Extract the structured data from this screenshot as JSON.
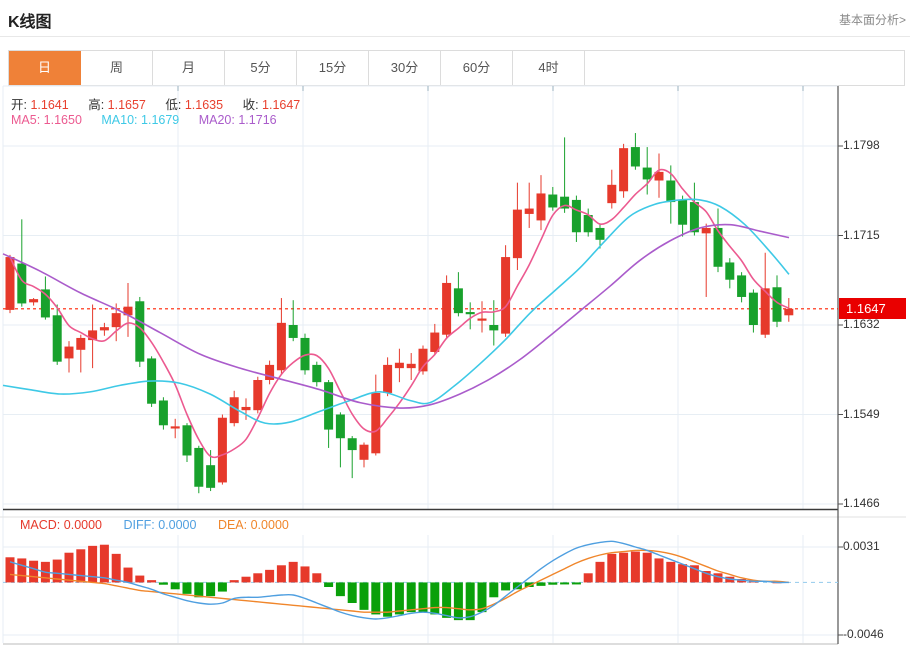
{
  "header": {
    "title": "K线图",
    "link": "基本面分析>"
  },
  "tabs": {
    "items": [
      "日",
      "周",
      "月",
      "5分",
      "15分",
      "30分",
      "60分",
      "4时"
    ],
    "active_index": 0
  },
  "info": {
    "ohlc": [
      {
        "label": "开:",
        "value": "1.1641"
      },
      {
        "label": "高:",
        "value": "1.1657"
      },
      {
        "label": "低:",
        "value": "1.1635"
      },
      {
        "label": "收:",
        "value": "1.1647"
      }
    ],
    "ma": [
      {
        "label": "MA5:",
        "value": "1.1650",
        "color": "#ec5a90"
      },
      {
        "label": "MA10:",
        "value": "1.1679",
        "color": "#3ec9e6"
      },
      {
        "label": "MA20:",
        "value": "1.1716",
        "color": "#aa5ccb"
      }
    ]
  },
  "chart_data": {
    "type": "candlestick",
    "title": "K线图",
    "last_price": 1.1647,
    "last_price_label": "1.1647",
    "y_axis": {
      "labels": [
        "1.1798",
        "1.1715",
        "1.1632",
        "1.1549",
        "1.1466"
      ],
      "values": [
        1.1798,
        1.1715,
        1.1632,
        1.1549,
        1.1466
      ],
      "ylim": [
        1.1461,
        1.1854
      ]
    },
    "candles_ohlc": [
      [
        1.1646,
        1.1697,
        1.1643,
        1.1695
      ],
      [
        1.1689,
        1.173,
        1.1649,
        1.1652
      ],
      [
        1.1653,
        1.1657,
        1.165,
        1.1656
      ],
      [
        1.1665,
        1.1677,
        1.1637,
        1.1639
      ],
      [
        1.1641,
        1.1651,
        1.1595,
        1.1598
      ],
      [
        1.1601,
        1.1617,
        1.1588,
        1.1612
      ],
      [
        1.1609,
        1.1623,
        1.1588,
        1.162
      ],
      [
        1.1618,
        1.1651,
        1.1592,
        1.1627
      ],
      [
        1.1627,
        1.1634,
        1.1622,
        1.163
      ],
      [
        1.163,
        1.1652,
        1.1617,
        1.1643
      ],
      [
        1.1641,
        1.1671,
        1.1621,
        1.1649
      ],
      [
        1.1654,
        1.1658,
        1.1593,
        1.1598
      ],
      [
        1.1601,
        1.1603,
        1.1556,
        1.1559
      ],
      [
        1.1562,
        1.1565,
        1.1535,
        1.1539
      ],
      [
        1.1536,
        1.1545,
        1.1527,
        1.1538
      ],
      [
        1.1539,
        1.1541,
        1.1505,
        1.1511
      ],
      [
        1.1518,
        1.152,
        1.1476,
        1.1482
      ],
      [
        1.1502,
        1.1516,
        1.1478,
        1.1481
      ],
      [
        1.1486,
        1.1549,
        1.1484,
        1.1546
      ],
      [
        1.1541,
        1.1571,
        1.1538,
        1.1565
      ],
      [
        1.1553,
        1.1564,
        1.1544,
        1.1556
      ],
      [
        1.1553,
        1.1584,
        1.155,
        1.1581
      ],
      [
        1.1581,
        1.1599,
        1.1577,
        1.1595
      ],
      [
        1.159,
        1.1657,
        1.1586,
        1.1634
      ],
      [
        1.1632,
        1.1655,
        1.1617,
        1.162
      ],
      [
        1.162,
        1.1624,
        1.1586,
        1.159
      ],
      [
        1.1595,
        1.1598,
        1.1575,
        1.1579
      ],
      [
        1.1579,
        1.1581,
        1.1518,
        1.1535
      ],
      [
        1.1549,
        1.1551,
        1.15,
        1.1527
      ],
      [
        1.1527,
        1.1529,
        1.149,
        1.1516
      ],
      [
        1.1507,
        1.1523,
        1.15,
        1.1521
      ],
      [
        1.1513,
        1.1586,
        1.1511,
        1.1569
      ],
      [
        1.1569,
        1.1602,
        1.1566,
        1.1595
      ],
      [
        1.1592,
        1.161,
        1.1579,
        1.1597
      ],
      [
        1.1592,
        1.1606,
        1.1581,
        1.1596
      ],
      [
        1.1589,
        1.1613,
        1.1586,
        1.161
      ],
      [
        1.1607,
        1.1633,
        1.1604,
        1.1625
      ],
      [
        1.1623,
        1.1678,
        1.162,
        1.1671
      ],
      [
        1.1666,
        1.1681,
        1.164,
        1.1643
      ],
      [
        1.1644,
        1.1653,
        1.1628,
        1.1642
      ],
      [
        1.1636,
        1.1654,
        1.1625,
        1.1638
      ],
      [
        1.1632,
        1.1655,
        1.1613,
        1.1627
      ],
      [
        1.1624,
        1.1706,
        1.1621,
        1.1695
      ],
      [
        1.1694,
        1.1764,
        1.1683,
        1.1739
      ],
      [
        1.1735,
        1.1764,
        1.1722,
        1.174
      ],
      [
        1.1729,
        1.1771,
        1.172,
        1.1754
      ],
      [
        1.1753,
        1.176,
        1.1738,
        1.1741
      ],
      [
        1.1751,
        1.1806,
        1.1736,
        1.174
      ],
      [
        1.1748,
        1.1752,
        1.1709,
        1.1718
      ],
      [
        1.1734,
        1.174,
        1.1714,
        1.1718
      ],
      [
        1.1722,
        1.1726,
        1.1703,
        1.1711
      ],
      [
        1.1745,
        1.1776,
        1.174,
        1.1762
      ],
      [
        1.1756,
        1.18,
        1.175,
        1.1796
      ],
      [
        1.1797,
        1.181,
        1.1776,
        1.1779
      ],
      [
        1.1778,
        1.1797,
        1.1753,
        1.1767
      ],
      [
        1.1766,
        1.1791,
        1.175,
        1.1774
      ],
      [
        1.1766,
        1.178,
        1.1726,
        1.1746
      ],
      [
        1.1748,
        1.1752,
        1.1714,
        1.1725
      ],
      [
        1.1746,
        1.1764,
        1.1715,
        1.1718
      ],
      [
        1.1717,
        1.1726,
        1.1658,
        1.1722
      ],
      [
        1.1722,
        1.174,
        1.1681,
        1.1686
      ],
      [
        1.169,
        1.1694,
        1.1666,
        1.1674
      ],
      [
        1.1678,
        1.1681,
        1.1653,
        1.1658
      ],
      [
        1.1662,
        1.1665,
        1.1625,
        1.1632
      ],
      [
        1.1623,
        1.1699,
        1.162,
        1.1666
      ],
      [
        1.1667,
        1.1678,
        1.163,
        1.1635
      ],
      [
        1.1641,
        1.1657,
        1.1635,
        1.1647
      ]
    ],
    "ma10_points": [
      [
        3,
        1.1576
      ],
      [
        30,
        1.1572
      ],
      [
        60,
        1.1568
      ],
      [
        90,
        1.157
      ],
      [
        120,
        1.1576
      ],
      [
        150,
        1.158
      ],
      [
        180,
        1.1578
      ],
      [
        210,
        1.1568
      ],
      [
        240,
        1.1552
      ],
      [
        265,
        1.1541
      ],
      [
        290,
        1.1542
      ],
      [
        320,
        1.1552
      ],
      [
        350,
        1.1562
      ],
      [
        380,
        1.157
      ],
      [
        410,
        1.1562
      ],
      [
        430,
        1.156
      ],
      [
        455,
        1.1576
      ],
      [
        480,
        1.1596
      ],
      [
        505,
        1.1618
      ],
      [
        530,
        1.1643
      ],
      [
        555,
        1.1664
      ],
      [
        580,
        1.1685
      ],
      [
        605,
        1.171
      ],
      [
        630,
        1.1733
      ],
      [
        655,
        1.1744
      ],
      [
        680,
        1.1748
      ],
      [
        700,
        1.1748
      ],
      [
        720,
        1.1742
      ],
      [
        745,
        1.1725
      ],
      [
        770,
        1.17
      ],
      [
        789,
        1.1679
      ]
    ],
    "ma20_points": [
      [
        3,
        1.1698
      ],
      [
        40,
        1.1682
      ],
      [
        80,
        1.1662
      ],
      [
        120,
        1.1645
      ],
      [
        160,
        1.1625
      ],
      [
        200,
        1.1605
      ],
      [
        240,
        1.1592
      ],
      [
        280,
        1.1582
      ],
      [
        320,
        1.1572
      ],
      [
        360,
        1.156
      ],
      [
        400,
        1.1555
      ],
      [
        430,
        1.1558
      ],
      [
        460,
        1.1568
      ],
      [
        490,
        1.1582
      ],
      [
        520,
        1.16
      ],
      [
        550,
        1.1622
      ],
      [
        580,
        1.1645
      ],
      [
        610,
        1.1668
      ],
      [
        640,
        1.1692
      ],
      [
        670,
        1.171
      ],
      [
        700,
        1.1722
      ],
      [
        730,
        1.1725
      ],
      [
        760,
        1.1719
      ],
      [
        789,
        1.1713
      ]
    ],
    "macd": {
      "labels": [
        {
          "label": "MACD:",
          "value": "0.0000",
          "color": "#e6392b"
        },
        {
          "label": "DIFF:",
          "value": "0.0000",
          "color": "#4f9fe0"
        },
        {
          "label": "DEA:",
          "value": "0.0000",
          "color": "#f0862b"
        }
      ],
      "y_axis": {
        "labels": [
          "0.0031",
          "-0.0046"
        ],
        "values": [
          0.0031,
          -0.0046
        ]
      },
      "hist_1e4": [
        22,
        21,
        19,
        18,
        20,
        26,
        29,
        32,
        33,
        25,
        13,
        6,
        2,
        -2,
        -6,
        -10,
        -13,
        -12,
        -8,
        2,
        5,
        8,
        11,
        15,
        18,
        14,
        8,
        -4,
        -12,
        -18,
        -24,
        -28,
        -30,
        -28,
        -26,
        -26,
        -28,
        -31,
        -33,
        -33,
        -26,
        -13,
        -7,
        -6,
        -4,
        -3,
        -2,
        -1,
        -1,
        8,
        18,
        25,
        26,
        27,
        26,
        21,
        18,
        16,
        15,
        10,
        8,
        5,
        3,
        2,
        0,
        1,
        0
      ],
      "diff_1e4": [
        18,
        15,
        12,
        9,
        8,
        7,
        6,
        5,
        4,
        2,
        0,
        -3,
        -6,
        -10,
        -13,
        -16,
        -18,
        -19,
        -18,
        -14,
        -13,
        -13,
        -12,
        -11,
        -11,
        -14,
        -18,
        -22,
        -26,
        -29,
        -31,
        -32,
        -31,
        -29,
        -27,
        -26,
        -27,
        -29,
        -31,
        -30,
        -26,
        -20,
        -12,
        -4,
        4,
        12,
        19,
        25,
        30,
        33,
        35,
        36,
        34,
        31,
        28,
        24,
        20,
        16,
        12,
        8,
        5,
        3,
        2,
        1,
        1,
        0,
        0
      ],
      "dea_1e4": [
        7,
        6,
        5,
        4,
        3,
        2,
        1,
        0,
        -1,
        -3,
        -5,
        -7,
        -8,
        -9,
        -10,
        -11,
        -12,
        -13,
        -14,
        -15,
        -16,
        -17,
        -18,
        -19,
        -20,
        -21,
        -22,
        -23,
        -24,
        -25,
        -26,
        -26,
        -26,
        -25,
        -24,
        -23,
        -22,
        -22,
        -23,
        -24,
        -23,
        -19,
        -14,
        -8,
        -3,
        2,
        7,
        12,
        17,
        21,
        24,
        26,
        27,
        28,
        28,
        27,
        25,
        22,
        18,
        14,
        10,
        7,
        4,
        2,
        1,
        1,
        0
      ]
    },
    "colors": {
      "up": "#e6392b",
      "down": "#18a12c",
      "macd_up": "#e6392b",
      "macd_down": "#0aa00a",
      "ma5": "#ec5a90",
      "ma10": "#3ec9e6",
      "ma20": "#aa5ccb",
      "diff": "#4f9fe0",
      "dea": "#f0862b",
      "badge": "#e90000",
      "dotted_line": "#ff2000",
      "grid": "#e7eef4",
      "axis": "#555555",
      "zero_dash": "#9fd0ee"
    }
  }
}
